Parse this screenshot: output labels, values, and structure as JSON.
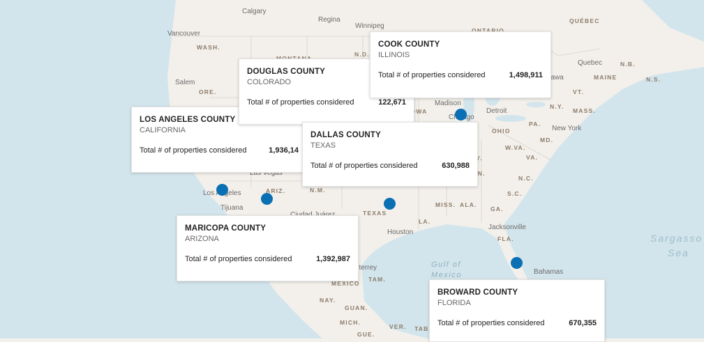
{
  "map": {
    "labels": [
      "Calgary",
      "Regina",
      "Winnipeg",
      "ONTARIO",
      "QUÉBEC",
      "Vancouver",
      "WASH.",
      "MONTANA",
      "N.D.",
      "Salem",
      "ORE.",
      "Quebec",
      "N.B.",
      "N.S.",
      "MAINE",
      "Ottawa",
      "VT.",
      "N.Y.",
      "MASS.",
      "Madison",
      "Chicago",
      "Detroit",
      "OHIO",
      "PA.",
      "New York",
      "MD.",
      "W.VA.",
      "VA.",
      "N.C.",
      "S.C.",
      "GA.",
      "ALA.",
      "MISS.",
      "LA.",
      "TEXAS",
      "Houston",
      "Jacksonville",
      "FLA.",
      "Bahamas",
      "Gulf of",
      "Mexico",
      "Sargasso",
      "Sea",
      "Las Vegas",
      "Los Angeles",
      "Tijuana",
      "ARIZ.",
      "N.M.",
      "Ciudad Juárez",
      "Monterrey",
      "MÉXICO",
      "TAM.",
      "NAY.",
      "GUAN.",
      "MICH.",
      "VER.",
      "TAB",
      "GUE.",
      "KY.",
      "TENN.",
      "IOWA"
    ]
  },
  "popups": [
    {
      "county": "LOS ANGELES COUNTY",
      "state": "CALIFORNIA",
      "metric": "Total # of properties considered",
      "value": "1,936,14"
    },
    {
      "county": "DOUGLAS COUNTY",
      "state": "COLORADO",
      "metric": "Total # of properties considered",
      "value": "122,671"
    },
    {
      "county": "COOK COUNTY",
      "state": "ILLINOIS",
      "metric": "Total # of properties considered",
      "value": "1,498,911"
    },
    {
      "county": "DALLAS COUNTY",
      "state": "TEXAS",
      "metric": "Total # of properties considered",
      "value": "630,988"
    },
    {
      "county": "MARICOPA COUNTY",
      "state": "ARIZONA",
      "metric": "Total # of properties considered",
      "value": "1,392,987"
    },
    {
      "county": "BROWARD COUNTY",
      "state": "FLORIDA",
      "metric": "Total # of properties considered",
      "value": "670,355"
    }
  ]
}
